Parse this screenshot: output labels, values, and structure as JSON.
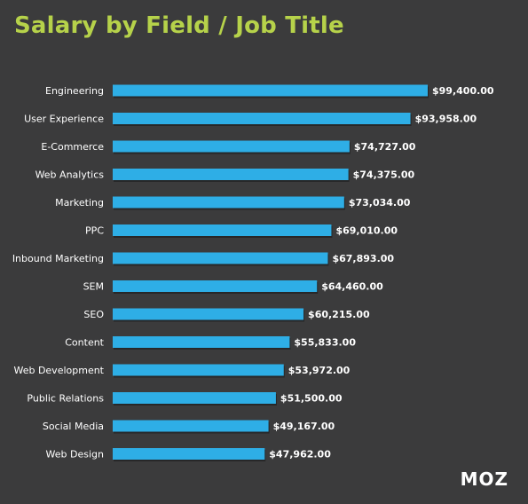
{
  "title": "Salary by Field / Job Title",
  "logo": "MOZ",
  "colors": {
    "background": "#3b3b3c",
    "title": "#b6d24a",
    "bar": "#2eaee6",
    "bar_shadow": "#1a1a1a",
    "text": "#ffffff"
  },
  "chart_data": {
    "type": "bar",
    "orientation": "horizontal",
    "categories": [
      "Engineering",
      "User Experience",
      "E-Commerce",
      "Web Analytics",
      "Marketing",
      "PPC",
      "Inbound Marketing",
      "SEM",
      "SEO",
      "Content",
      "Web Development",
      "Public Relations",
      "Social Media",
      "Web Design"
    ],
    "values": [
      99400,
      93958,
      74727,
      74375,
      73034,
      69010,
      67893,
      64460,
      60215,
      55833,
      53972,
      51500,
      49167,
      47962
    ],
    "value_labels": [
      "$99,400.00",
      "$93,958.00",
      "$74,727.00",
      "$74,375.00",
      "$73,034.00",
      "$69,010.00",
      "$67,893.00",
      "$64,460.00",
      "$60,215.00",
      "$55,833.00",
      "$53,972.00",
      "$51,500.00",
      "$49,167.00",
      "$47,962.00"
    ],
    "title": "Salary by Field / Job Title",
    "xlabel": "",
    "ylabel": "",
    "xlim": [
      0,
      99400
    ],
    "grid": false,
    "legend": false
  }
}
